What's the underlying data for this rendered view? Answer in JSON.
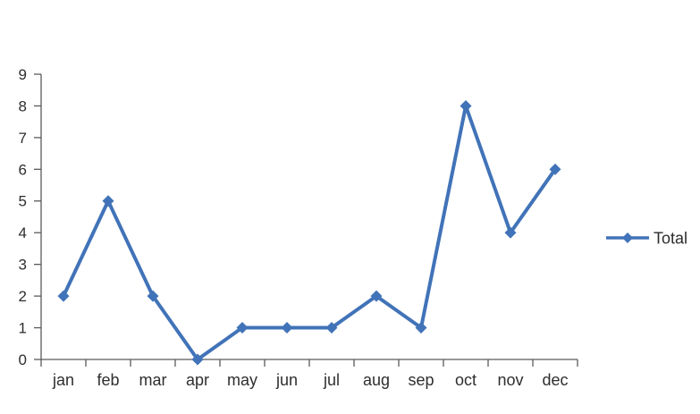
{
  "chart_data": {
    "type": "line",
    "title": "",
    "xlabel": "",
    "ylabel": "",
    "categories": [
      "jan",
      "feb",
      "mar",
      "apr",
      "may",
      "jun",
      "jul",
      "aug",
      "sep",
      "oct",
      "nov",
      "dec"
    ],
    "series": [
      {
        "name": "Total",
        "values": [
          2,
          5,
          2,
          0,
          1,
          1,
          1,
          2,
          1,
          8,
          4,
          6
        ]
      }
    ],
    "ylim": [
      0,
      9
    ],
    "ytick_step": 1,
    "yticks": [
      0,
      1,
      2,
      3,
      4,
      5,
      6,
      7,
      8,
      9
    ],
    "grid": false,
    "marker": "diamond",
    "legend_position": "right",
    "colors": {
      "series": "#4173b8",
      "axis": "#5a5a5a",
      "tick_label": "#2e2e2e",
      "legend_text": "#2b2b2b",
      "background": "#ffffff"
    }
  }
}
